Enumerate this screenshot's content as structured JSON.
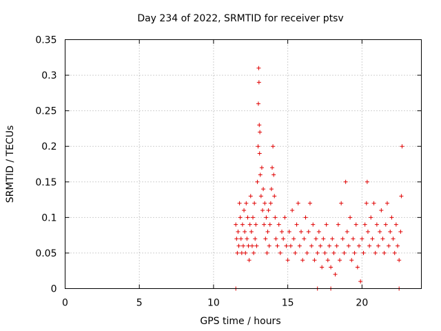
{
  "chart_data": {
    "type": "scatter",
    "title": "Day 234 of 2022, SRMTID for receiver ptsv",
    "xlabel": "GPS time / hours",
    "ylabel": "SRMTID / TECUs",
    "xlim": [
      0,
      24
    ],
    "ylim": [
      0,
      0.35
    ],
    "x_ticks": [
      0,
      5,
      10,
      15,
      20
    ],
    "x_tick_labels": [
      "0",
      "5",
      "10",
      "15",
      "20"
    ],
    "y_ticks": [
      0,
      0.05,
      0.1,
      0.15,
      0.2,
      0.25,
      0.3,
      0.35
    ],
    "y_tick_labels": [
      "0",
      "0.05",
      "0.1",
      "0.15",
      "0.2",
      "0.25",
      "0.3",
      "0.35"
    ],
    "grid": true,
    "marker": "plus",
    "color": "#e00000",
    "series": [
      {
        "name": "SRMTID",
        "points": [
          [
            11.5,
            0.0
          ],
          [
            11.5,
            0.09
          ],
          [
            11.55,
            0.07
          ],
          [
            11.6,
            0.05
          ],
          [
            11.65,
            0.08
          ],
          [
            11.7,
            0.06
          ],
          [
            11.75,
            0.12
          ],
          [
            11.8,
            0.1
          ],
          [
            11.85,
            0.07
          ],
          [
            11.9,
            0.05
          ],
          [
            11.95,
            0.09
          ],
          [
            12.0,
            0.06
          ],
          [
            12.05,
            0.11
          ],
          [
            12.1,
            0.08
          ],
          [
            12.15,
            0.05
          ],
          [
            12.2,
            0.12
          ],
          [
            12.25,
            0.07
          ],
          [
            12.3,
            0.1
          ],
          [
            12.35,
            0.06
          ],
          [
            12.4,
            0.04
          ],
          [
            12.45,
            0.09
          ],
          [
            12.5,
            0.13
          ],
          [
            12.55,
            0.08
          ],
          [
            12.6,
            0.06
          ],
          [
            12.65,
            0.1
          ],
          [
            12.7,
            0.05
          ],
          [
            12.75,
            0.12
          ],
          [
            12.8,
            0.07
          ],
          [
            12.85,
            0.09
          ],
          [
            12.9,
            0.06
          ],
          [
            12.95,
            0.15
          ],
          [
            13.0,
            0.2
          ],
          [
            13.02,
            0.26
          ],
          [
            13.04,
            0.31
          ],
          [
            13.06,
            0.29
          ],
          [
            13.08,
            0.23
          ],
          [
            13.1,
            0.19
          ],
          [
            13.12,
            0.22
          ],
          [
            13.15,
            0.16
          ],
          [
            13.2,
            0.13
          ],
          [
            13.25,
            0.17
          ],
          [
            13.3,
            0.11
          ],
          [
            13.35,
            0.14
          ],
          [
            13.4,
            0.09
          ],
          [
            13.45,
            0.12
          ],
          [
            13.5,
            0.07
          ],
          [
            13.55,
            0.1
          ],
          [
            13.6,
            0.05
          ],
          [
            13.65,
            0.08
          ],
          [
            13.7,
            0.11
          ],
          [
            13.75,
            0.06
          ],
          [
            13.8,
            0.09
          ],
          [
            13.85,
            0.12
          ],
          [
            13.9,
            0.14
          ],
          [
            13.95,
            0.17
          ],
          [
            14.0,
            0.2
          ],
          [
            14.05,
            0.16
          ],
          [
            14.1,
            0.13
          ],
          [
            14.15,
            0.1
          ],
          [
            14.2,
            0.07
          ],
          [
            14.3,
            0.06
          ],
          [
            14.4,
            0.09
          ],
          [
            14.5,
            0.05
          ],
          [
            14.6,
            0.08
          ],
          [
            14.7,
            0.07
          ],
          [
            14.8,
            0.1
          ],
          [
            14.9,
            0.06
          ],
          [
            15.0,
            0.04
          ],
          [
            15.1,
            0.08
          ],
          [
            15.2,
            0.06
          ],
          [
            15.3,
            0.11
          ],
          [
            15.4,
            0.07
          ],
          [
            15.5,
            0.05
          ],
          [
            15.6,
            0.09
          ],
          [
            15.7,
            0.12
          ],
          [
            15.8,
            0.06
          ],
          [
            15.9,
            0.08
          ],
          [
            16.0,
            0.04
          ],
          [
            16.1,
            0.07
          ],
          [
            16.2,
            0.1
          ],
          [
            16.3,
            0.05
          ],
          [
            16.4,
            0.08
          ],
          [
            16.5,
            0.12
          ],
          [
            16.6,
            0.06
          ],
          [
            16.7,
            0.09
          ],
          [
            16.8,
            0.04
          ],
          [
            16.9,
            0.07
          ],
          [
            17.0,
            0.05
          ],
          [
            17.0,
            0.0
          ],
          [
            17.1,
            0.08
          ],
          [
            17.2,
            0.06
          ],
          [
            17.3,
            0.03
          ],
          [
            17.4,
            0.07
          ],
          [
            17.5,
            0.05
          ],
          [
            17.6,
            0.09
          ],
          [
            17.7,
            0.04
          ],
          [
            17.8,
            0.06
          ],
          [
            17.9,
            0.0
          ],
          [
            17.9,
            0.03
          ],
          [
            18.0,
            0.07
          ],
          [
            18.1,
            0.05
          ],
          [
            18.2,
            0.02
          ],
          [
            18.3,
            0.06
          ],
          [
            18.4,
            0.09
          ],
          [
            18.5,
            0.04
          ],
          [
            18.6,
            0.12
          ],
          [
            18.7,
            0.07
          ],
          [
            18.8,
            0.05
          ],
          [
            18.9,
            0.15
          ],
          [
            19.0,
            0.08
          ],
          [
            19.1,
            0.06
          ],
          [
            19.2,
            0.1
          ],
          [
            19.3,
            0.04
          ],
          [
            19.4,
            0.07
          ],
          [
            19.5,
            0.05
          ],
          [
            19.6,
            0.09
          ],
          [
            19.7,
            0.03
          ],
          [
            19.8,
            0.06
          ],
          [
            19.9,
            0.01
          ],
          [
            20.0,
            0.07
          ],
          [
            20.1,
            0.05
          ],
          [
            20.2,
            0.09
          ],
          [
            20.3,
            0.12
          ],
          [
            20.35,
            0.15
          ],
          [
            20.4,
            0.08
          ],
          [
            20.5,
            0.06
          ],
          [
            20.6,
            0.1
          ],
          [
            20.7,
            0.07
          ],
          [
            20.8,
            0.12
          ],
          [
            20.9,
            0.05
          ],
          [
            21.0,
            0.09
          ],
          [
            21.1,
            0.06
          ],
          [
            21.2,
            0.08
          ],
          [
            21.3,
            0.11
          ],
          [
            21.4,
            0.07
          ],
          [
            21.5,
            0.05
          ],
          [
            21.6,
            0.09
          ],
          [
            21.7,
            0.12
          ],
          [
            21.8,
            0.06
          ],
          [
            21.9,
            0.08
          ],
          [
            22.0,
            0.1
          ],
          [
            22.1,
            0.07
          ],
          [
            22.2,
            0.05
          ],
          [
            22.3,
            0.09
          ],
          [
            22.4,
            0.06
          ],
          [
            22.5,
            0.04
          ],
          [
            22.5,
            0.0
          ],
          [
            22.6,
            0.08
          ],
          [
            22.65,
            0.13
          ],
          [
            22.7,
            0.2
          ]
        ]
      }
    ]
  }
}
